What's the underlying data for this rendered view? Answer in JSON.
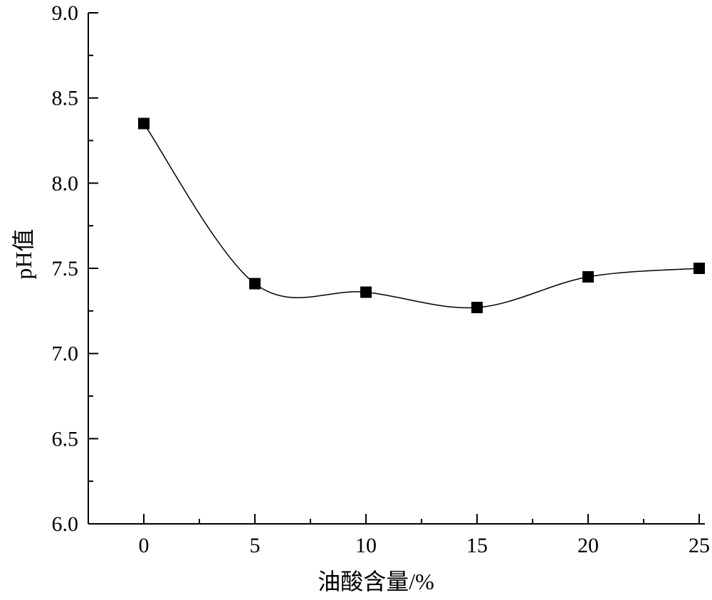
{
  "chart_data": {
    "type": "line",
    "title": "",
    "xlabel": "油酸含量/%",
    "ylabel": "pH值",
    "x": [
      0,
      5,
      10,
      15,
      20,
      25
    ],
    "series": [
      {
        "values": [
          8.35,
          7.41,
          7.36,
          7.27,
          7.45,
          7.5
        ]
      }
    ],
    "xlim": [
      -2.5,
      25
    ],
    "ylim": [
      6.0,
      9.0
    ],
    "xticks": [
      "0",
      "5",
      "10",
      "15",
      "20",
      "25"
    ],
    "yticks": [
      "6.0",
      "6.5",
      "7.0",
      "7.5",
      "8.0",
      "8.5",
      "9.0"
    ],
    "marker": "square",
    "line_style": "smooth",
    "grid": false,
    "legend": "none",
    "colors": {
      "line": "#000000",
      "marker": "#000000",
      "axis": "#000000"
    }
  }
}
